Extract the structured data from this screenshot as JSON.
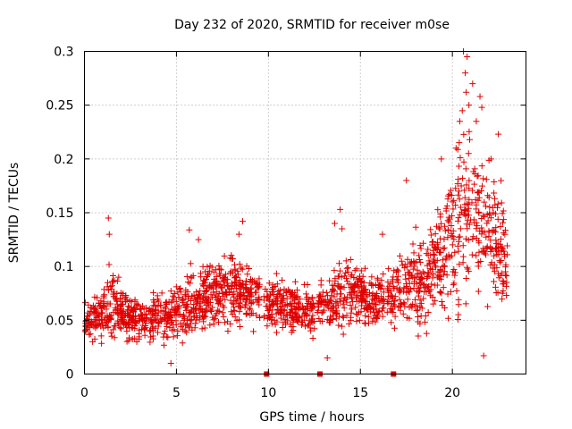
{
  "chart_data": {
    "type": "scatter",
    "title": "Day 232 of 2020, SRMTID for receiver m0se",
    "xlabel": "GPS time / hours",
    "ylabel": "SRMTID / TECUs",
    "xlim": [
      0,
      24
    ],
    "ylim": [
      0,
      0.3
    ],
    "xticks": [
      0,
      5,
      10,
      15,
      20
    ],
    "xtick_labels": [
      "0",
      "5",
      "10",
      "15",
      "20"
    ],
    "yticks": [
      0,
      0.05,
      0.1,
      0.15,
      0.2,
      0.25,
      0.3
    ],
    "ytick_labels": [
      "0",
      "0.05",
      "0.1",
      "0.15",
      "0.2",
      "0.25",
      "0.3"
    ],
    "grid": true,
    "marker": "+",
    "series_color": "#e00000",
    "series": [
      {
        "name": "SRMTID",
        "profile_hours": [
          0,
          0.5,
          1.0,
          1.5,
          2.0,
          2.5,
          3.0,
          3.5,
          4.0,
          4.5,
          5.0,
          5.5,
          6.0,
          6.5,
          7.0,
          7.5,
          8.0,
          8.5,
          9.0,
          9.5,
          10.0,
          10.5,
          11.0,
          11.5,
          12.0,
          12.5,
          13.0,
          13.5,
          14.0,
          14.5,
          15.0,
          15.5,
          16.0,
          16.5,
          17.0,
          17.5,
          18.0,
          18.5,
          19.0,
          19.5,
          20.0,
          20.5,
          21.0,
          21.5,
          22.0,
          22.5,
          23.0
        ],
        "profile_mean": [
          0.045,
          0.05,
          0.055,
          0.065,
          0.058,
          0.05,
          0.048,
          0.05,
          0.052,
          0.055,
          0.058,
          0.062,
          0.065,
          0.07,
          0.075,
          0.078,
          0.08,
          0.078,
          0.075,
          0.07,
          0.065,
          0.065,
          0.062,
          0.06,
          0.06,
          0.062,
          0.065,
          0.068,
          0.075,
          0.078,
          0.072,
          0.068,
          0.07,
          0.072,
          0.075,
          0.08,
          0.085,
          0.09,
          0.1,
          0.11,
          0.13,
          0.16,
          0.155,
          0.14,
          0.13,
          0.12,
          0.1
        ],
        "profile_spread": [
          0.01,
          0.012,
          0.015,
          0.022,
          0.015,
          0.013,
          0.013,
          0.014,
          0.015,
          0.015,
          0.016,
          0.018,
          0.02,
          0.02,
          0.02,
          0.021,
          0.022,
          0.021,
          0.02,
          0.016,
          0.015,
          0.015,
          0.014,
          0.013,
          0.013,
          0.014,
          0.015,
          0.018,
          0.022,
          0.02,
          0.018,
          0.016,
          0.017,
          0.018,
          0.02,
          0.025,
          0.028,
          0.03,
          0.032,
          0.035,
          0.045,
          0.06,
          0.05,
          0.045,
          0.04,
          0.038,
          0.03
        ],
        "outliers": [
          {
            "x": 1.3,
            "y": 0.145
          },
          {
            "x": 1.35,
            "y": 0.13
          },
          {
            "x": 5.7,
            "y": 0.134
          },
          {
            "x": 6.2,
            "y": 0.125
          },
          {
            "x": 8.6,
            "y": 0.142
          },
          {
            "x": 8.4,
            "y": 0.13
          },
          {
            "x": 13.9,
            "y": 0.153
          },
          {
            "x": 13.6,
            "y": 0.14
          },
          {
            "x": 14.0,
            "y": 0.135
          },
          {
            "x": 16.2,
            "y": 0.13
          },
          {
            "x": 17.5,
            "y": 0.18
          },
          {
            "x": 19.4,
            "y": 0.2
          },
          {
            "x": 20.2,
            "y": 0.21
          },
          {
            "x": 20.4,
            "y": 0.235
          },
          {
            "x": 20.6,
            "y": 0.3
          },
          {
            "x": 20.8,
            "y": 0.295
          },
          {
            "x": 20.7,
            "y": 0.28
          },
          {
            "x": 20.75,
            "y": 0.262
          },
          {
            "x": 20.9,
            "y": 0.25
          },
          {
            "x": 21.1,
            "y": 0.27
          },
          {
            "x": 21.5,
            "y": 0.258
          },
          {
            "x": 21.6,
            "y": 0.248
          },
          {
            "x": 21.3,
            "y": 0.235
          },
          {
            "x": 22.5,
            "y": 0.223
          },
          {
            "x": 22.1,
            "y": 0.2
          },
          {
            "x": 21.7,
            "y": 0.017
          },
          {
            "x": 4.7,
            "y": 0.01
          },
          {
            "x": 13.2,
            "y": 0.015
          }
        ]
      }
    ],
    "data_gaps_hours": [
      9.9,
      12.8,
      16.8
    ]
  }
}
